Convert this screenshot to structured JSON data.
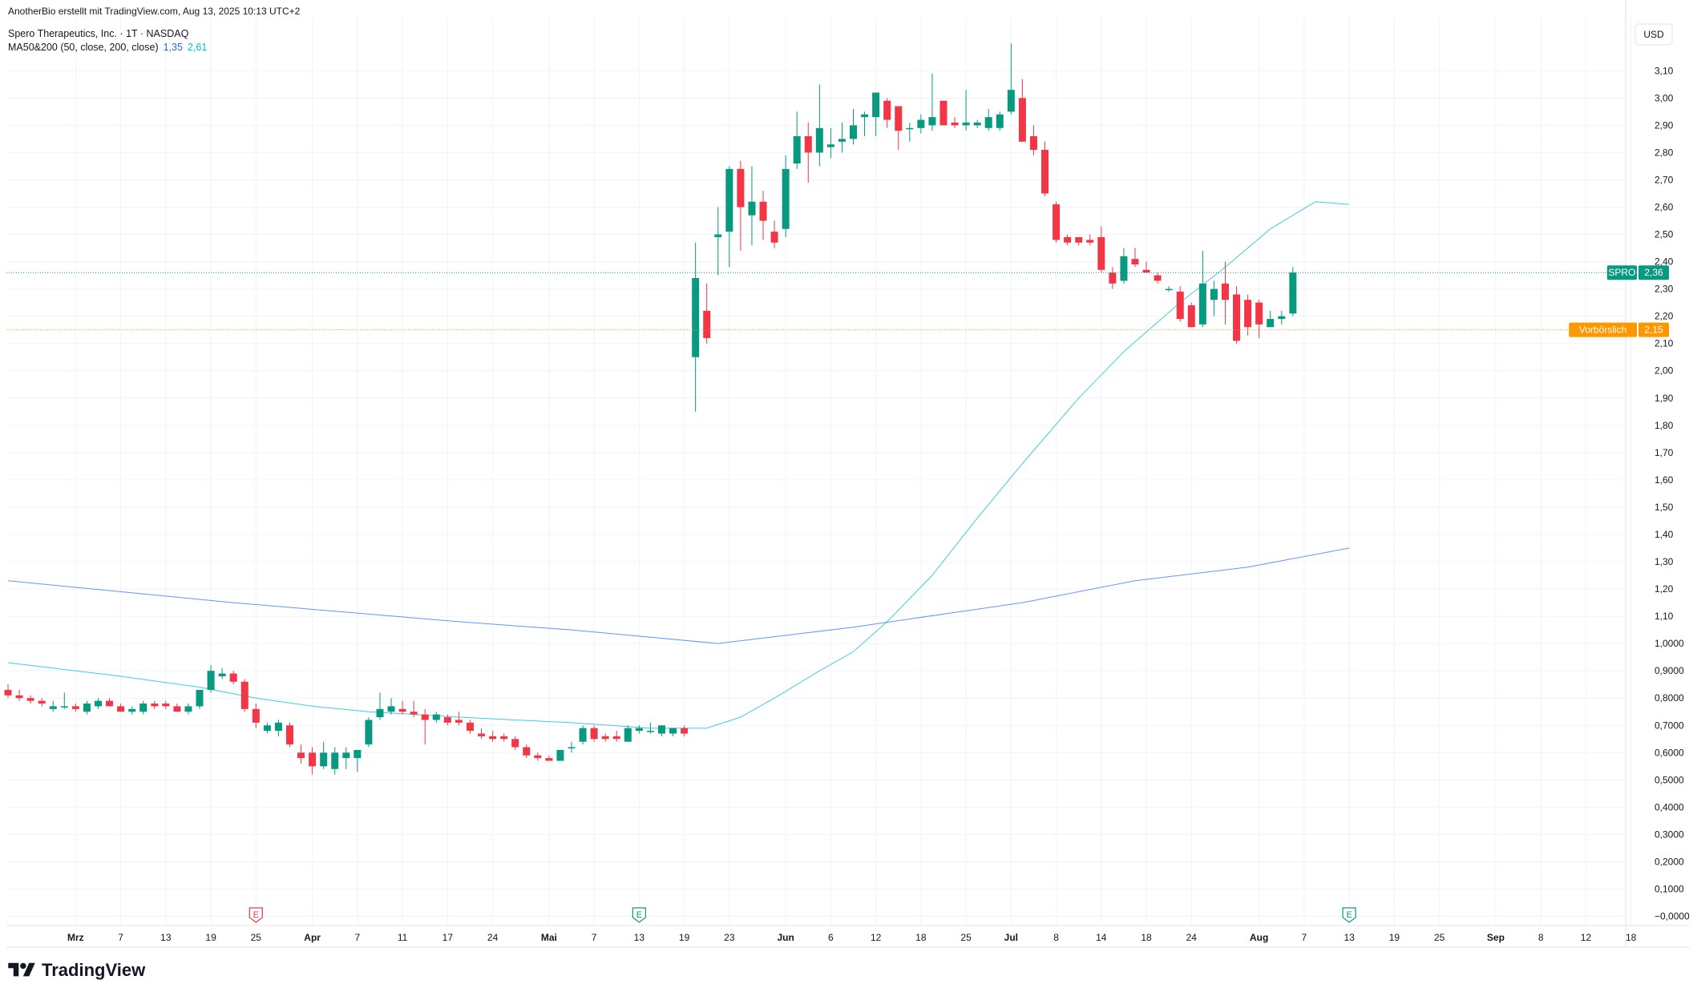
{
  "header": {
    "attribution": "AnotherBio erstellt mit TradingView.com, Aug 13, 2025 10:13 UTC+2",
    "symbol_title": "Spero Therapeutics, Inc. · 1T · NASDAQ",
    "indicator_label": "MA50&200 (50, close, 200, close)",
    "indicator_value_1": "1,35",
    "indicator_value_2": "2,61"
  },
  "brand": {
    "name": "TradingView",
    "icon": "tradingview-logo-icon"
  },
  "colors": {
    "up": "#089981",
    "down": "#f23645",
    "ma200": "#2962ff",
    "ma50": "#00bcd4",
    "last_price": "#089981",
    "premarket": "#ff9800",
    "grid": "#f0f3fa",
    "axis_text": "#131722"
  },
  "chart_data": {
    "type": "candlestick",
    "currency": "USD",
    "y_axis": {
      "min": -0.05,
      "max": 3.21,
      "ticks": [
        {
          "v": 3.1,
          "label": "3,10"
        },
        {
          "v": 3.0,
          "label": "3,00"
        },
        {
          "v": 2.9,
          "label": "2,90"
        },
        {
          "v": 2.8,
          "label": "2,80"
        },
        {
          "v": 2.7,
          "label": "2,70"
        },
        {
          "v": 2.6,
          "label": "2,60"
        },
        {
          "v": 2.5,
          "label": "2,50"
        },
        {
          "v": 2.4,
          "label": "2,40"
        },
        {
          "v": 2.3,
          "label": "2,30"
        },
        {
          "v": 2.2,
          "label": "2,20"
        },
        {
          "v": 2.1,
          "label": "2,10"
        },
        {
          "v": 2.0,
          "label": "2,00"
        },
        {
          "v": 1.9,
          "label": "1,90"
        },
        {
          "v": 1.8,
          "label": "1,80"
        },
        {
          "v": 1.7,
          "label": "1,70"
        },
        {
          "v": 1.6,
          "label": "1,60"
        },
        {
          "v": 1.5,
          "label": "1,50"
        },
        {
          "v": 1.4,
          "label": "1,40"
        },
        {
          "v": 1.3,
          "label": "1,30"
        },
        {
          "v": 1.2,
          "label": "1,20"
        },
        {
          "v": 1.1,
          "label": "1,10"
        },
        {
          "v": 1.0,
          "label": "1,0000"
        },
        {
          "v": 0.9,
          "label": "0,9000"
        },
        {
          "v": 0.8,
          "label": "0,8000"
        },
        {
          "v": 0.7,
          "label": "0,7000"
        },
        {
          "v": 0.6,
          "label": "0,6000"
        },
        {
          "v": 0.5,
          "label": "0,5000"
        },
        {
          "v": 0.4,
          "label": "0,4000"
        },
        {
          "v": 0.3,
          "label": "0,3000"
        },
        {
          "v": 0.2,
          "label": "0,2000"
        },
        {
          "v": 0.1,
          "label": "0,1000"
        },
        {
          "v": 0.0,
          "label": "−0,0000"
        }
      ]
    },
    "x_axis": {
      "ticks": [
        {
          "i": 6,
          "label": "Mrz",
          "bold": true
        },
        {
          "i": 10,
          "label": "7",
          "bold": false
        },
        {
          "i": 14,
          "label": "13",
          "bold": false
        },
        {
          "i": 18,
          "label": "19",
          "bold": false
        },
        {
          "i": 22,
          "label": "25",
          "bold": false
        },
        {
          "i": 27,
          "label": "Apr",
          "bold": true
        },
        {
          "i": 31,
          "label": "7",
          "bold": false
        },
        {
          "i": 35,
          "label": "11",
          "bold": false
        },
        {
          "i": 39,
          "label": "17",
          "bold": false
        },
        {
          "i": 43,
          "label": "24",
          "bold": false
        },
        {
          "i": 48,
          "label": "Mai",
          "bold": true
        },
        {
          "i": 52,
          "label": "7",
          "bold": false
        },
        {
          "i": 56,
          "label": "13",
          "bold": false
        },
        {
          "i": 60,
          "label": "19",
          "bold": false
        },
        {
          "i": 64,
          "label": "23",
          "bold": false
        },
        {
          "i": 69,
          "label": "Jun",
          "bold": true
        },
        {
          "i": 73,
          "label": "6",
          "bold": false
        },
        {
          "i": 77,
          "label": "12",
          "bold": false
        },
        {
          "i": 81,
          "label": "18",
          "bold": false
        },
        {
          "i": 85,
          "label": "25",
          "bold": false
        },
        {
          "i": 89,
          "label": "Jul",
          "bold": true
        },
        {
          "i": 93,
          "label": "8",
          "bold": false
        },
        {
          "i": 97,
          "label": "14",
          "bold": false
        },
        {
          "i": 101,
          "label": "18",
          "bold": false
        },
        {
          "i": 105,
          "label": "24",
          "bold": false
        },
        {
          "i": 111,
          "label": "Aug",
          "bold": true
        },
        {
          "i": 115,
          "label": "7",
          "bold": false
        },
        {
          "i": 119,
          "label": "13",
          "bold": false
        },
        {
          "i": 123,
          "label": "19",
          "bold": false
        },
        {
          "i": 127,
          "label": "25",
          "bold": false
        },
        {
          "i": 132,
          "label": "Sep",
          "bold": true
        },
        {
          "i": 136,
          "label": "8",
          "bold": false
        },
        {
          "i": 140,
          "label": "12",
          "bold": false
        },
        {
          "i": 144,
          "label": "18",
          "bold": false
        }
      ]
    },
    "candles": [
      {
        "o": 0.83,
        "h": 0.85,
        "l": 0.8,
        "c": 0.81
      },
      {
        "o": 0.81,
        "h": 0.83,
        "l": 0.79,
        "c": 0.8
      },
      {
        "o": 0.8,
        "h": 0.81,
        "l": 0.78,
        "c": 0.79
      },
      {
        "o": 0.79,
        "h": 0.8,
        "l": 0.77,
        "c": 0.78
      },
      {
        "o": 0.76,
        "h": 0.79,
        "l": 0.75,
        "c": 0.77
      },
      {
        "o": 0.77,
        "h": 0.82,
        "l": 0.76,
        "c": 0.77
      },
      {
        "o": 0.77,
        "h": 0.78,
        "l": 0.75,
        "c": 0.76
      },
      {
        "o": 0.75,
        "h": 0.79,
        "l": 0.74,
        "c": 0.78
      },
      {
        "o": 0.77,
        "h": 0.8,
        "l": 0.76,
        "c": 0.79
      },
      {
        "o": 0.79,
        "h": 0.8,
        "l": 0.77,
        "c": 0.77
      },
      {
        "o": 0.77,
        "h": 0.78,
        "l": 0.75,
        "c": 0.75
      },
      {
        "o": 0.75,
        "h": 0.77,
        "l": 0.74,
        "c": 0.76
      },
      {
        "o": 0.75,
        "h": 0.79,
        "l": 0.74,
        "c": 0.78
      },
      {
        "o": 0.78,
        "h": 0.79,
        "l": 0.76,
        "c": 0.77
      },
      {
        "o": 0.78,
        "h": 0.79,
        "l": 0.76,
        "c": 0.77
      },
      {
        "o": 0.77,
        "h": 0.78,
        "l": 0.75,
        "c": 0.75
      },
      {
        "o": 0.75,
        "h": 0.78,
        "l": 0.74,
        "c": 0.77
      },
      {
        "o": 0.77,
        "h": 0.83,
        "l": 0.76,
        "c": 0.83
      },
      {
        "o": 0.83,
        "h": 0.92,
        "l": 0.82,
        "c": 0.9
      },
      {
        "o": 0.88,
        "h": 0.91,
        "l": 0.87,
        "c": 0.89
      },
      {
        "o": 0.89,
        "h": 0.9,
        "l": 0.85,
        "c": 0.86
      },
      {
        "o": 0.86,
        "h": 0.87,
        "l": 0.75,
        "c": 0.76
      },
      {
        "o": 0.76,
        "h": 0.78,
        "l": 0.69,
        "c": 0.71
      },
      {
        "o": 0.68,
        "h": 0.71,
        "l": 0.67,
        "c": 0.7
      },
      {
        "o": 0.68,
        "h": 0.72,
        "l": 0.66,
        "c": 0.71
      },
      {
        "o": 0.7,
        "h": 0.71,
        "l": 0.62,
        "c": 0.63
      },
      {
        "o": 0.6,
        "h": 0.63,
        "l": 0.56,
        "c": 0.58
      },
      {
        "o": 0.6,
        "h": 0.62,
        "l": 0.52,
        "c": 0.55
      },
      {
        "o": 0.55,
        "h": 0.64,
        "l": 0.54,
        "c": 0.6
      },
      {
        "o": 0.54,
        "h": 0.62,
        "l": 0.52,
        "c": 0.6
      },
      {
        "o": 0.58,
        "h": 0.62,
        "l": 0.54,
        "c": 0.6
      },
      {
        "o": 0.58,
        "h": 0.61,
        "l": 0.53,
        "c": 0.61
      },
      {
        "o": 0.63,
        "h": 0.73,
        "l": 0.62,
        "c": 0.72
      },
      {
        "o": 0.73,
        "h": 0.82,
        "l": 0.72,
        "c": 0.76
      },
      {
        "o": 0.75,
        "h": 0.8,
        "l": 0.74,
        "c": 0.77
      },
      {
        "o": 0.76,
        "h": 0.79,
        "l": 0.74,
        "c": 0.75
      },
      {
        "o": 0.75,
        "h": 0.79,
        "l": 0.73,
        "c": 0.74
      },
      {
        "o": 0.74,
        "h": 0.76,
        "l": 0.63,
        "c": 0.72
      },
      {
        "o": 0.72,
        "h": 0.75,
        "l": 0.71,
        "c": 0.74
      },
      {
        "o": 0.73,
        "h": 0.74,
        "l": 0.7,
        "c": 0.71
      },
      {
        "o": 0.72,
        "h": 0.75,
        "l": 0.7,
        "c": 0.71
      },
      {
        "o": 0.71,
        "h": 0.72,
        "l": 0.67,
        "c": 0.68
      },
      {
        "o": 0.67,
        "h": 0.69,
        "l": 0.65,
        "c": 0.66
      },
      {
        "o": 0.66,
        "h": 0.68,
        "l": 0.64,
        "c": 0.65
      },
      {
        "o": 0.66,
        "h": 0.67,
        "l": 0.64,
        "c": 0.65
      },
      {
        "o": 0.65,
        "h": 0.66,
        "l": 0.61,
        "c": 0.62
      },
      {
        "o": 0.62,
        "h": 0.63,
        "l": 0.58,
        "c": 0.59
      },
      {
        "o": 0.59,
        "h": 0.6,
        "l": 0.57,
        "c": 0.58
      },
      {
        "o": 0.58,
        "h": 0.59,
        "l": 0.57,
        "c": 0.57
      },
      {
        "o": 0.57,
        "h": 0.61,
        "l": 0.57,
        "c": 0.61
      },
      {
        "o": 0.62,
        "h": 0.64,
        "l": 0.6,
        "c": 0.62
      },
      {
        "o": 0.64,
        "h": 0.7,
        "l": 0.63,
        "c": 0.69
      },
      {
        "o": 0.69,
        "h": 0.7,
        "l": 0.64,
        "c": 0.65
      },
      {
        "o": 0.66,
        "h": 0.67,
        "l": 0.64,
        "c": 0.65
      },
      {
        "o": 0.66,
        "h": 0.68,
        "l": 0.64,
        "c": 0.65
      },
      {
        "o": 0.64,
        "h": 0.7,
        "l": 0.64,
        "c": 0.69
      },
      {
        "o": 0.68,
        "h": 0.7,
        "l": 0.67,
        "c": 0.69
      },
      {
        "o": 0.68,
        "h": 0.71,
        "l": 0.67,
        "c": 0.68
      },
      {
        "o": 0.67,
        "h": 0.7,
        "l": 0.66,
        "c": 0.7
      },
      {
        "o": 0.67,
        "h": 0.69,
        "l": 0.66,
        "c": 0.69
      },
      {
        "o": 0.69,
        "h": 0.7,
        "l": 0.66,
        "c": 0.67
      },
      {
        "o": 2.05,
        "h": 2.47,
        "l": 1.85,
        "c": 2.34
      },
      {
        "o": 2.22,
        "h": 2.32,
        "l": 2.1,
        "c": 2.12
      },
      {
        "o": 2.49,
        "h": 2.6,
        "l": 2.35,
        "c": 2.5
      },
      {
        "o": 2.51,
        "h": 2.75,
        "l": 2.38,
        "c": 2.74
      },
      {
        "o": 2.74,
        "h": 2.77,
        "l": 2.44,
        "c": 2.6
      },
      {
        "o": 2.57,
        "h": 2.75,
        "l": 2.46,
        "c": 2.62
      },
      {
        "o": 2.62,
        "h": 2.66,
        "l": 2.48,
        "c": 2.55
      },
      {
        "o": 2.51,
        "h": 2.55,
        "l": 2.45,
        "c": 2.47
      },
      {
        "o": 2.52,
        "h": 2.79,
        "l": 2.49,
        "c": 2.74
      },
      {
        "o": 2.76,
        "h": 2.95,
        "l": 2.74,
        "c": 2.86
      },
      {
        "o": 2.86,
        "h": 2.91,
        "l": 2.69,
        "c": 2.8
      },
      {
        "o": 2.8,
        "h": 3.05,
        "l": 2.75,
        "c": 2.89
      },
      {
        "o": 2.82,
        "h": 2.89,
        "l": 2.78,
        "c": 2.83
      },
      {
        "o": 2.84,
        "h": 2.91,
        "l": 2.8,
        "c": 2.85
      },
      {
        "o": 2.85,
        "h": 2.96,
        "l": 2.83,
        "c": 2.9
      },
      {
        "o": 2.93,
        "h": 2.95,
        "l": 2.86,
        "c": 2.94
      },
      {
        "o": 2.93,
        "h": 3.02,
        "l": 2.86,
        "c": 3.02
      },
      {
        "o": 2.99,
        "h": 3.0,
        "l": 2.89,
        "c": 2.92
      },
      {
        "o": 2.97,
        "h": 2.97,
        "l": 2.81,
        "c": 2.88
      },
      {
        "o": 2.89,
        "h": 2.91,
        "l": 2.84,
        "c": 2.89
      },
      {
        "o": 2.89,
        "h": 2.94,
        "l": 2.87,
        "c": 2.92
      },
      {
        "o": 2.9,
        "h": 3.09,
        "l": 2.88,
        "c": 2.93
      },
      {
        "o": 2.99,
        "h": 2.99,
        "l": 2.9,
        "c": 2.9
      },
      {
        "o": 2.91,
        "h": 2.93,
        "l": 2.89,
        "c": 2.9
      },
      {
        "o": 2.9,
        "h": 3.03,
        "l": 2.88,
        "c": 2.91
      },
      {
        "o": 2.9,
        "h": 2.92,
        "l": 2.89,
        "c": 2.91
      },
      {
        "o": 2.89,
        "h": 2.96,
        "l": 2.88,
        "c": 2.93
      },
      {
        "o": 2.89,
        "h": 2.95,
        "l": 2.88,
        "c": 2.94
      },
      {
        "o": 2.95,
        "h": 3.2,
        "l": 2.94,
        "c": 3.03
      },
      {
        "o": 3.0,
        "h": 3.07,
        "l": 2.84,
        "c": 2.84
      },
      {
        "o": 2.86,
        "h": 2.9,
        "l": 2.79,
        "c": 2.81
      },
      {
        "o": 2.81,
        "h": 2.84,
        "l": 2.64,
        "c": 2.65
      },
      {
        "o": 2.61,
        "h": 2.62,
        "l": 2.47,
        "c": 2.48
      },
      {
        "o": 2.49,
        "h": 2.5,
        "l": 2.46,
        "c": 2.47
      },
      {
        "o": 2.49,
        "h": 2.49,
        "l": 2.46,
        "c": 2.47
      },
      {
        "o": 2.48,
        "h": 2.5,
        "l": 2.46,
        "c": 2.47
      },
      {
        "o": 2.49,
        "h": 2.53,
        "l": 2.36,
        "c": 2.37
      },
      {
        "o": 2.36,
        "h": 2.38,
        "l": 2.3,
        "c": 2.32
      },
      {
        "o": 2.33,
        "h": 2.45,
        "l": 2.32,
        "c": 2.42
      },
      {
        "o": 2.41,
        "h": 2.45,
        "l": 2.38,
        "c": 2.39
      },
      {
        "o": 2.37,
        "h": 2.4,
        "l": 2.36,
        "c": 2.36
      },
      {
        "o": 2.35,
        "h": 2.36,
        "l": 2.32,
        "c": 2.33
      },
      {
        "o": 2.3,
        "h": 2.31,
        "l": 2.29,
        "c": 2.3
      },
      {
        "o": 2.29,
        "h": 2.31,
        "l": 2.18,
        "c": 2.19
      },
      {
        "o": 2.24,
        "h": 2.25,
        "l": 2.16,
        "c": 2.16
      },
      {
        "o": 2.17,
        "h": 2.44,
        "l": 2.16,
        "c": 2.32
      },
      {
        "o": 2.26,
        "h": 2.33,
        "l": 2.2,
        "c": 2.3
      },
      {
        "o": 2.32,
        "h": 2.4,
        "l": 2.17,
        "c": 2.26
      },
      {
        "o": 2.28,
        "h": 2.31,
        "l": 2.1,
        "c": 2.11
      },
      {
        "o": 2.26,
        "h": 2.28,
        "l": 2.13,
        "c": 2.16
      },
      {
        "o": 2.25,
        "h": 2.26,
        "l": 2.12,
        "c": 2.17
      },
      {
        "o": 2.16,
        "h": 2.22,
        "l": 2.16,
        "c": 2.19
      },
      {
        "o": 2.19,
        "h": 2.22,
        "l": 2.17,
        "c": 2.2
      },
      {
        "o": 2.21,
        "h": 2.38,
        "l": 2.2,
        "c": 2.36
      }
    ],
    "ma50": [
      {
        "i": 0,
        "v": 0.93
      },
      {
        "i": 10,
        "v": 0.88
      },
      {
        "i": 17,
        "v": 0.84
      },
      {
        "i": 22,
        "v": 0.8
      },
      {
        "i": 27,
        "v": 0.77
      },
      {
        "i": 32,
        "v": 0.75
      },
      {
        "i": 40,
        "v": 0.73
      },
      {
        "i": 50,
        "v": 0.71
      },
      {
        "i": 57,
        "v": 0.69
      },
      {
        "i": 62,
        "v": 0.69
      },
      {
        "i": 65,
        "v": 0.73
      },
      {
        "i": 68,
        "v": 0.8
      },
      {
        "i": 72,
        "v": 0.9
      },
      {
        "i": 75,
        "v": 0.97
      },
      {
        "i": 78,
        "v": 1.08
      },
      {
        "i": 82,
        "v": 1.25
      },
      {
        "i": 86,
        "v": 1.46
      },
      {
        "i": 90,
        "v": 1.66
      },
      {
        "i": 95,
        "v": 1.9
      },
      {
        "i": 99,
        "v": 2.07
      },
      {
        "i": 104,
        "v": 2.25
      },
      {
        "i": 108,
        "v": 2.38
      },
      {
        "i": 112,
        "v": 2.52
      },
      {
        "i": 116,
        "v": 2.62
      },
      {
        "i": 119,
        "v": 2.61
      }
    ],
    "ma200": [
      {
        "i": 0,
        "v": 1.23
      },
      {
        "i": 20,
        "v": 1.15
      },
      {
        "i": 40,
        "v": 1.08
      },
      {
        "i": 50,
        "v": 1.05
      },
      {
        "i": 63,
        "v": 1.0
      },
      {
        "i": 67,
        "v": 1.02
      },
      {
        "i": 75,
        "v": 1.06
      },
      {
        "i": 90,
        "v": 1.15
      },
      {
        "i": 100,
        "v": 1.23
      },
      {
        "i": 110,
        "v": 1.28
      },
      {
        "i": 119,
        "v": 1.35
      }
    ],
    "price_tags": [
      {
        "name": "SPRO",
        "value": 2.36,
        "label": "2,36",
        "color": "#089981",
        "line_style": "dotted"
      },
      {
        "name": "Vorbörslich",
        "value": 2.15,
        "label": "2,15",
        "color": "#ff9800",
        "line_style": "dotted"
      }
    ],
    "earnings_markers": [
      {
        "i": 22,
        "label": "E",
        "color": "#f23645"
      },
      {
        "i": 56,
        "label": "E",
        "color": "#089981"
      },
      {
        "i": 119,
        "label": "E",
        "color": "#089981"
      }
    ],
    "series": [
      {
        "name": "MA50&200 (50, close, 200, close)",
        "values": [
          1.35,
          2.61
        ]
      }
    ]
  }
}
